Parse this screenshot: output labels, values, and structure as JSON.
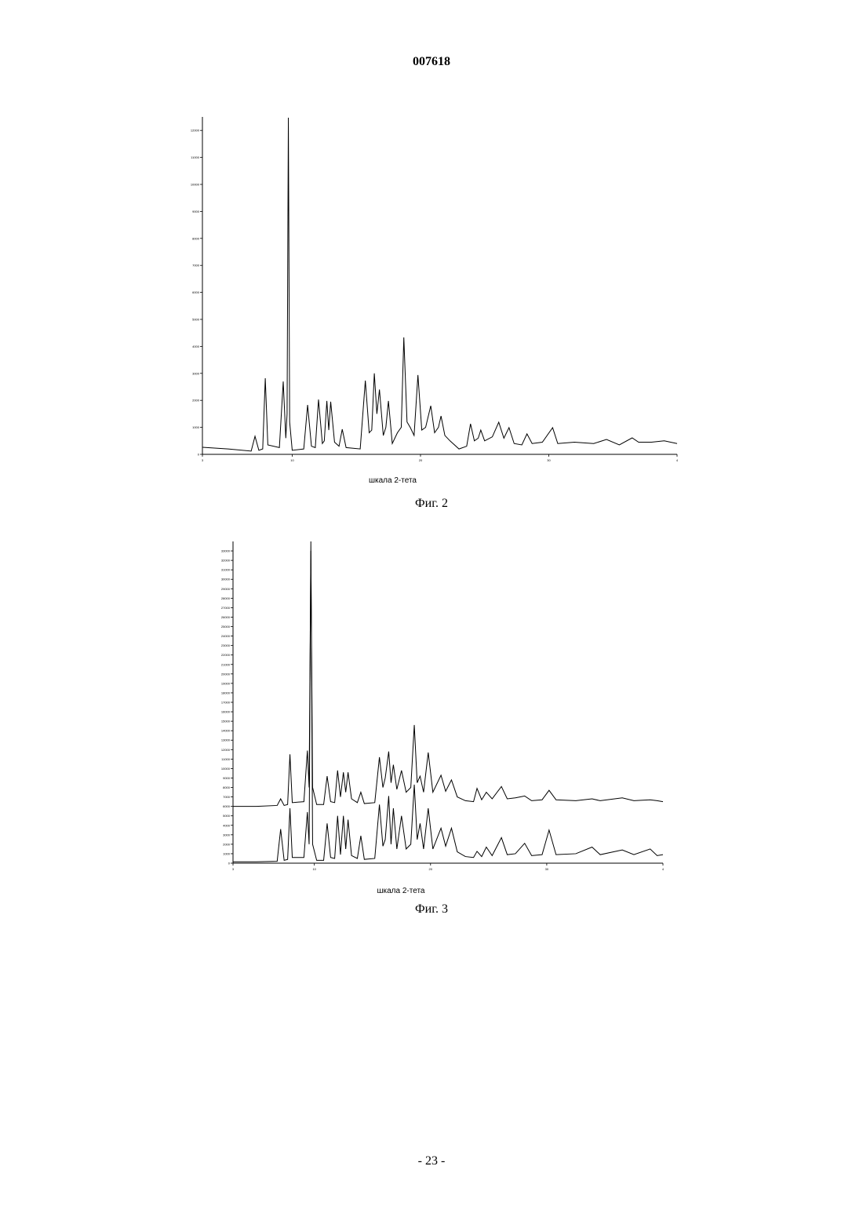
{
  "header": {
    "number": "007618"
  },
  "footer": {
    "page": "- 23 -"
  },
  "chart_data": [
    {
      "type": "line",
      "xlabel": "шкала 2-тета",
      "caption": "Фиг. 2",
      "color": "#000000",
      "xlim": [
        3,
        40
      ],
      "ylim": [
        0,
        12500
      ],
      "xticks": [
        3,
        10,
        20,
        30,
        {
          "value": 40,
          "label": "4"
        }
      ],
      "yticks": [
        0,
        1000,
        2000,
        3000,
        4000,
        5000,
        6000,
        7000,
        8000,
        9000,
        10000,
        11000,
        12000
      ],
      "x": [
        3,
        5,
        6.8,
        7.1,
        7.4,
        7.7,
        7.9,
        8.1,
        9.0,
        9.3,
        9.5,
        9.6,
        9.7,
        9.8,
        10.0,
        10.9,
        11.2,
        11.5,
        11.8,
        12.05,
        12.35,
        12.5,
        12.7,
        12.85,
        13.0,
        13.3,
        13.65,
        13.9,
        14.2,
        15.3,
        15.7,
        16.0,
        16.2,
        16.4,
        16.6,
        16.8,
        17.1,
        17.3,
        17.5,
        17.8,
        18.2,
        18.5,
        18.7,
        18.95,
        19.2,
        19.5,
        19.8,
        20.1,
        20.4,
        20.8,
        21.1,
        21.4,
        21.6,
        21.9,
        22.3,
        23.0,
        23.6,
        23.9,
        24.2,
        24.5,
        24.7,
        25.0,
        25.6,
        26.1,
        26.5,
        26.9,
        27.3,
        27.9,
        28.3,
        28.7,
        29.5,
        30.3,
        30.7,
        32,
        33.5,
        34.5,
        35.5,
        36.5,
        37,
        38,
        39,
        40
      ],
      "values": [
        260,
        200,
        120,
        670,
        150,
        200,
        2820,
        350,
        250,
        2700,
        600,
        1500,
        12470,
        1200,
        150,
        200,
        1830,
        300,
        250,
        2030,
        400,
        500,
        1980,
        900,
        1950,
        450,
        300,
        930,
        250,
        200,
        2730,
        800,
        900,
        3000,
        1500,
        2400,
        700,
        1000,
        1980,
        400,
        800,
        1000,
        4330,
        1200,
        1000,
        700,
        2940,
        900,
        1000,
        1800,
        800,
        1000,
        1420,
        700,
        500,
        200,
        300,
        1130,
        500,
        600,
        900,
        500,
        650,
        1190,
        600,
        990,
        400,
        350,
        760,
        400,
        450,
        990,
        400,
        450,
        400,
        550,
        350,
        610,
        450,
        450,
        500,
        400
      ]
    },
    {
      "type": "line",
      "xlabel": "шкала 2-тета",
      "caption": "Фиг. 3",
      "xlim": [
        3,
        40
      ],
      "ylim": [
        0,
        34000
      ],
      "xticks": [
        3,
        10,
        20,
        30,
        {
          "value": 40,
          "label": "4"
        }
      ],
      "yticks": [
        0,
        1000,
        2000,
        3000,
        4000,
        5000,
        6000,
        7000,
        8000,
        9000,
        10000,
        11000,
        12000,
        13000,
        14000,
        15000,
        16000,
        17000,
        18000,
        19000,
        20000,
        21000,
        22000,
        23000,
        24000,
        25000,
        26000,
        27000,
        28000,
        29000,
        30000,
        31000,
        32000,
        33000
      ],
      "x": [
        3,
        5,
        6.8,
        7.1,
        7.4,
        7.7,
        7.9,
        8.1,
        9.1,
        9.4,
        9.55,
        9.7,
        9.85,
        10.2,
        10.8,
        11.1,
        11.4,
        11.75,
        12.0,
        12.25,
        12.5,
        12.7,
        12.9,
        13.2,
        13.7,
        14.0,
        14.3,
        15.2,
        15.6,
        15.9,
        16.1,
        16.4,
        16.6,
        16.8,
        17.1,
        17.5,
        17.9,
        18.3,
        18.6,
        18.85,
        19.1,
        19.4,
        19.8,
        20.2,
        20.9,
        21.3,
        21.8,
        22.3,
        23.0,
        23.7,
        24.0,
        24.4,
        24.8,
        25.3,
        26.1,
        26.6,
        27.3,
        28.1,
        28.7,
        29.6,
        30.2,
        30.8,
        32.5,
        33.9,
        34.6,
        36.5,
        37.5,
        38.9,
        39.5,
        40
      ],
      "series": [
        {
          "color": "#000000",
          "values": [
            150,
            150,
            200,
            3600,
            300,
            400,
            5800,
            600,
            600,
            5400,
            2000,
            34000,
            2000,
            300,
            300,
            4200,
            600,
            500,
            5000,
            900,
            5000,
            1500,
            4600,
            800,
            500,
            2900,
            400,
            500,
            6200,
            1800,
            2500,
            7100,
            2000,
            5800,
            1500,
            5000,
            1500,
            2000,
            8300,
            2500,
            4200,
            1500,
            5800,
            1500,
            3700,
            1800,
            3700,
            1200,
            700,
            600,
            1250,
            700,
            1700,
            800,
            2700,
            900,
            1000,
            2100,
            800,
            900,
            3500,
            900,
            1000,
            1700,
            900,
            1400,
            900,
            1500,
            800,
            900
          ]
        },
        {
          "color": "#000000",
          "values": [
            6000,
            6000,
            6100,
            6800,
            6100,
            6200,
            11500,
            6400,
            6500,
            11900,
            8000,
            33000,
            8000,
            6200,
            6200,
            9200,
            6500,
            6400,
            9800,
            7000,
            9600,
            7500,
            9600,
            6800,
            6400,
            7500,
            6300,
            6400,
            11200,
            8000,
            9000,
            11800,
            8500,
            10400,
            7800,
            9800,
            7500,
            8000,
            14600,
            8500,
            9200,
            7500,
            11700,
            7500,
            9300,
            7600,
            8800,
            7000,
            6600,
            6500,
            7900,
            6700,
            7500,
            6800,
            8100,
            6800,
            6900,
            7100,
            6600,
            6700,
            7700,
            6700,
            6600,
            6800,
            6600,
            6900,
            6600,
            6700,
            6600,
            6500
          ]
        }
      ]
    }
  ]
}
